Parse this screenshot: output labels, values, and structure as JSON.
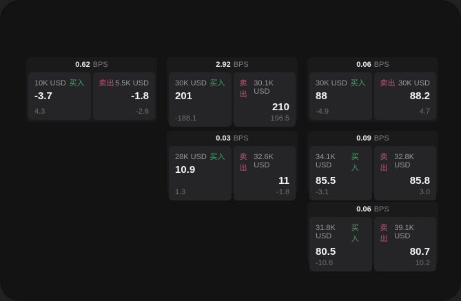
{
  "labels": {
    "buy": "买入",
    "sell": "卖出",
    "bps_unit": "BPS"
  },
  "colors": {
    "buy_accent": "#45a169",
    "sell_accent": "#bb5570",
    "window_bg": "#131314",
    "card_bg": "#1a1a1b",
    "panel_bg": "#252527"
  },
  "cards": [
    {
      "bps": "0.62",
      "buy_size": "10K USD",
      "buy_price": "-3.7",
      "buy_sub": "4.3",
      "sell_size": "5.5K USD",
      "sell_price": "-1.8",
      "sell_sub": "-2.6"
    },
    {
      "bps": "2.92",
      "buy_size": "30K USD",
      "buy_price": "201",
      "buy_sub": "-188.1",
      "sell_size": "30.1K USD",
      "sell_price": "210",
      "sell_sub": "196.5"
    },
    {
      "bps": "0.06",
      "buy_size": "30K USD",
      "buy_price": "88",
      "buy_sub": "-4.9",
      "sell_size": "30K USD",
      "sell_price": "88.2",
      "sell_sub": "4.7"
    },
    {
      "bps": "0.03",
      "buy_size": "28K USD",
      "buy_price": "10.9",
      "buy_sub": "1.3",
      "sell_size": "32.6K USD",
      "sell_price": "11",
      "sell_sub": "-1.8"
    },
    {
      "bps": "0.09",
      "buy_size": "34.1K USD",
      "buy_price": "85.5",
      "buy_sub": "-3.1",
      "sell_size": "32.8K USD",
      "sell_price": "85.8",
      "sell_sub": "3.0"
    },
    {
      "bps": "0.06",
      "buy_size": "31.8K USD",
      "buy_price": "80.5",
      "buy_sub": "-10.8",
      "sell_size": "39.1K USD",
      "sell_price": "80.7",
      "sell_sub": "10.2"
    }
  ]
}
